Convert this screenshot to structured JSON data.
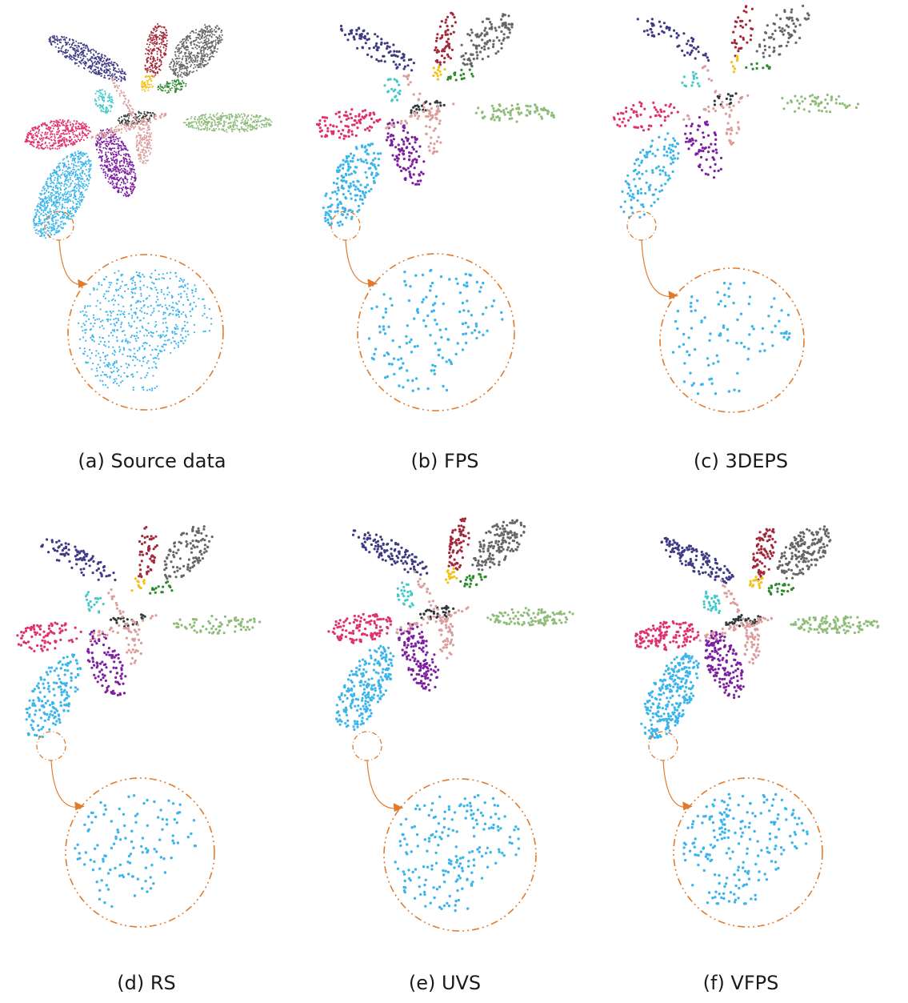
{
  "figure": {
    "panels": [
      {
        "id": "a",
        "caption": "(a) Source data",
        "sampling": "source",
        "density": 1.0
      },
      {
        "id": "b",
        "caption": "(b) FPS",
        "sampling": "fps",
        "density": 0.22
      },
      {
        "id": "c",
        "caption": "(c) 3DEPS",
        "sampling": "3deps",
        "density": 0.14
      },
      {
        "id": "d",
        "caption": "(d) RS",
        "sampling": "rs",
        "density": 0.2
      },
      {
        "id": "e",
        "caption": "(e) UVS",
        "sampling": "uvs",
        "density": 0.28
      },
      {
        "id": "f",
        "caption": "(f) VFPS",
        "sampling": "vfps",
        "density": 0.32
      }
    ],
    "segment_colors": {
      "navy_leaf": "#3f3a85",
      "red_leaf": "#a3283a",
      "gray_leaf": "#666666",
      "yellow_leaf": "#f2c21b",
      "green_leaf": "#2d8a2d",
      "cyan_leaf": "#45c9c9",
      "darkgray_cluster": "#2f3a3a",
      "lightgreen_leaf": "#8fbc7a",
      "magenta_leaf": "#e0306f",
      "purple_leaf": "#7d1fa0",
      "blue_leaf": "#3bb5ec",
      "stem": "#dc9d9d"
    },
    "zoom_circle_color": "#e07b2e",
    "zoom_points_color": "#3bb5ec"
  }
}
